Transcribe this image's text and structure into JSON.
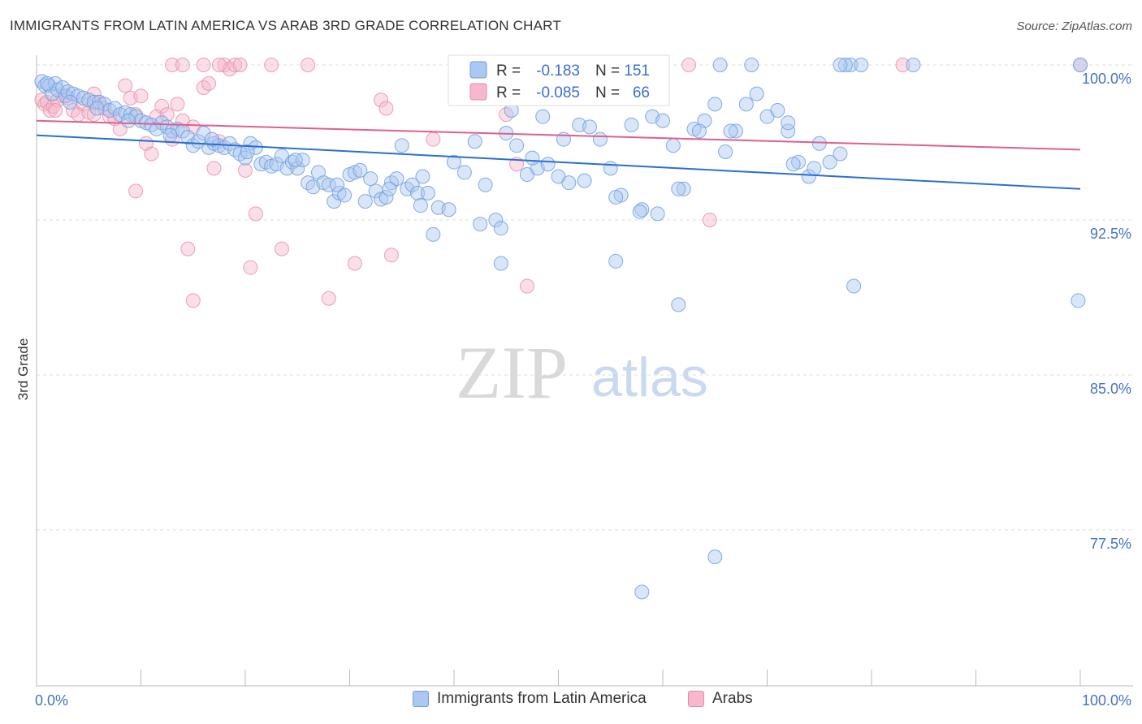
{
  "header": {
    "title": "IMMIGRANTS FROM LATIN AMERICA VS ARAB 3RD GRADE CORRELATION CHART",
    "source": "Source: ZipAtlas.com"
  },
  "watermark": {
    "zip": "ZIP",
    "atlas": "atlas"
  },
  "colors": {
    "blue_fill": "#aac8f0",
    "blue_stroke": "#6f9de0",
    "blue_line": "#2a6fd1",
    "pink_fill": "#f5b8cc",
    "pink_stroke": "#e98aa8",
    "pink_line": "#e05f8c",
    "tick_text": "#4472c4",
    "grid": "#dddddd"
  },
  "legend": {
    "r_label": "R =",
    "n_label": "N =",
    "entries": [
      {
        "r": "-0.183",
        "n": "151"
      },
      {
        "r": "-0.085",
        "n": "66"
      }
    ]
  },
  "chart_data": {
    "type": "scatter",
    "title": "IMMIGRANTS FROM LATIN AMERICA VS ARAB 3RD GRADE CORRELATION CHART",
    "xlabel": "",
    "ylabel": "3rd Grade",
    "xlim": [
      0,
      100
    ],
    "ylim": [
      71.5,
      100.8
    ],
    "x_tick_labels": [
      "0.0%",
      "100.0%"
    ],
    "y_ticks": [
      77.5,
      85.0,
      92.5,
      100.0
    ],
    "y_tick_labels": [
      "77.5%",
      "85.0%",
      "92.5%",
      "100.0%"
    ],
    "grid": true,
    "legend_position": "top-center",
    "series": [
      {
        "name": "Immigrants from Latin America",
        "color": "blue",
        "trend": {
          "x": [
            0,
            100
          ],
          "y": [
            96.6,
            94.0
          ]
        },
        "points": [
          [
            0.5,
            99.2
          ],
          [
            0.8,
            99.0
          ],
          [
            1.2,
            99.0
          ],
          [
            1.5,
            98.6
          ],
          [
            1.8,
            99.1
          ],
          [
            2.0,
            98.8
          ],
          [
            2.5,
            98.9
          ],
          [
            2.8,
            98.5
          ],
          [
            3.0,
            98.7
          ],
          [
            3.5,
            98.6
          ],
          [
            4.0,
            98.5
          ],
          [
            4.5,
            98.4
          ],
          [
            5.0,
            98.3
          ],
          [
            5.5,
            98.2
          ],
          [
            6.0,
            98.2
          ],
          [
            6.5,
            98.1
          ],
          [
            7.0,
            97.8
          ],
          [
            7.5,
            97.9
          ],
          [
            8.0,
            97.6
          ],
          [
            8.5,
            97.7
          ],
          [
            9.0,
            97.6
          ],
          [
            9.5,
            97.5
          ],
          [
            10.0,
            97.3
          ],
          [
            10.5,
            97.2
          ],
          [
            11.0,
            97.1
          ],
          [
            11.5,
            96.9
          ],
          [
            12.0,
            97.2
          ],
          [
            12.5,
            97.0
          ],
          [
            13.0,
            96.8
          ],
          [
            13.5,
            96.9
          ],
          [
            14.0,
            96.8
          ],
          [
            14.5,
            96.5
          ],
          [
            15.0,
            96.1
          ],
          [
            15.5,
            96.3
          ],
          [
            16.0,
            96.7
          ],
          [
            16.5,
            96.0
          ],
          [
            17.0,
            96.2
          ],
          [
            17.5,
            96.1
          ],
          [
            18.0,
            96.0
          ],
          [
            18.5,
            96.2
          ],
          [
            19.0,
            95.9
          ],
          [
            19.5,
            95.7
          ],
          [
            20.0,
            95.5
          ],
          [
            20.5,
            96.2
          ],
          [
            21.0,
            96.0
          ],
          [
            21.5,
            95.2
          ],
          [
            22.0,
            95.3
          ],
          [
            22.5,
            95.1
          ],
          [
            23.0,
            95.2
          ],
          [
            23.5,
            95.6
          ],
          [
            24.0,
            95.0
          ],
          [
            24.5,
            95.3
          ],
          [
            25.0,
            95.0
          ],
          [
            25.5,
            95.4
          ],
          [
            26.0,
            94.3
          ],
          [
            26.5,
            94.1
          ],
          [
            27.0,
            94.8
          ],
          [
            27.5,
            94.3
          ],
          [
            28.0,
            94.2
          ],
          [
            28.5,
            93.4
          ],
          [
            29.0,
            93.8
          ],
          [
            29.5,
            93.7
          ],
          [
            30.0,
            94.7
          ],
          [
            30.5,
            94.8
          ],
          [
            31.0,
            94.9
          ],
          [
            31.5,
            93.4
          ],
          [
            32.0,
            94.5
          ],
          [
            32.5,
            93.9
          ],
          [
            33.0,
            93.5
          ],
          [
            33.5,
            93.6
          ],
          [
            34.0,
            94.3
          ],
          [
            34.5,
            94.5
          ],
          [
            35.0,
            96.1
          ],
          [
            35.5,
            94.0
          ],
          [
            36.0,
            94.2
          ],
          [
            36.5,
            93.8
          ],
          [
            37.0,
            94.6
          ],
          [
            37.5,
            93.8
          ],
          [
            38.0,
            91.8
          ],
          [
            38.5,
            93.1
          ],
          [
            40.0,
            95.3
          ],
          [
            41.0,
            94.8
          ],
          [
            42.0,
            96.3
          ],
          [
            43.0,
            94.2
          ],
          [
            44.0,
            92.5
          ],
          [
            45.0,
            96.7
          ],
          [
            46.0,
            96.1
          ],
          [
            47.0,
            94.7
          ],
          [
            48.0,
            95.0
          ],
          [
            49.0,
            95.2
          ],
          [
            50.0,
            94.6
          ],
          [
            51.0,
            94.3
          ],
          [
            52.0,
            97.1
          ],
          [
            53.0,
            97.0
          ],
          [
            54.0,
            96.4
          ],
          [
            55.0,
            95.0
          ],
          [
            56.0,
            93.7
          ],
          [
            57.0,
            97.1
          ],
          [
            58.0,
            93.0
          ],
          [
            59.0,
            97.5
          ],
          [
            60.0,
            97.3
          ],
          [
            61.0,
            96.1
          ],
          [
            62.0,
            94.0
          ],
          [
            63.0,
            96.9
          ],
          [
            64.0,
            97.3
          ],
          [
            65.0,
            98.1
          ],
          [
            66.0,
            95.8
          ],
          [
            67.0,
            96.8
          ],
          [
            68.0,
            98.1
          ],
          [
            69.0,
            98.6
          ],
          [
            70.0,
            97.5
          ],
          [
            71.0,
            97.8
          ],
          [
            72.0,
            96.8
          ],
          [
            73.0,
            95.3
          ],
          [
            74.0,
            94.6
          ],
          [
            75.0,
            96.2
          ],
          [
            76.0,
            95.3
          ],
          [
            77.0,
            95.7
          ],
          [
            78.0,
            100.0
          ],
          [
            79.0,
            100.0
          ],
          [
            1.0,
            99.1
          ],
          [
            3.2,
            98.2
          ],
          [
            5.8,
            97.9
          ],
          [
            8.8,
            97.3
          ],
          [
            12.8,
            96.6
          ],
          [
            16.8,
            96.4
          ],
          [
            20.2,
            95.8
          ],
          [
            24.8,
            95.4
          ],
          [
            28.8,
            94.2
          ],
          [
            33.8,
            94.0
          ],
          [
            36.8,
            93.2
          ],
          [
            39.5,
            93.0
          ],
          [
            42.5,
            92.3
          ],
          [
            44.5,
            92.1
          ],
          [
            45.5,
            97.8
          ],
          [
            47.5,
            95.5
          ],
          [
            48.5,
            97.5
          ],
          [
            50.5,
            96.4
          ],
          [
            52.5,
            94.4
          ],
          [
            55.5,
            93.6
          ],
          [
            57.8,
            92.9
          ],
          [
            59.5,
            92.8
          ],
          [
            61.5,
            94.0
          ],
          [
            63.5,
            96.8
          ],
          [
            65.5,
            100.0
          ],
          [
            66.5,
            96.8
          ],
          [
            68.5,
            100.0
          ],
          [
            72.5,
            95.2
          ],
          [
            77.5,
            100.0
          ],
          [
            84.0,
            100.0
          ],
          [
            99.8,
            88.6
          ],
          [
            78.3,
            89.3
          ],
          [
            61.5,
            88.4
          ],
          [
            55.5,
            90.5
          ],
          [
            44.5,
            90.4
          ],
          [
            65.0,
            76.2
          ],
          [
            58.0,
            74.5
          ],
          [
            100.0,
            100.0
          ],
          [
            77.0,
            100.0
          ],
          [
            74.5,
            95.0
          ],
          [
            72.0,
            97.2
          ]
        ]
      },
      {
        "name": "Arabs",
        "color": "pink",
        "trend": {
          "x": [
            0,
            100
          ],
          "y": [
            97.3,
            95.9
          ]
        },
        "points": [
          [
            0.5,
            98.3
          ],
          [
            0.8,
            98.1
          ],
          [
            1.0,
            98.2
          ],
          [
            1.3,
            97.8
          ],
          [
            1.6,
            98.0
          ],
          [
            2.0,
            98.3
          ],
          [
            2.5,
            98.5
          ],
          [
            3.0,
            98.4
          ],
          [
            3.5,
            97.8
          ],
          [
            4.0,
            97.6
          ],
          [
            4.5,
            98.1
          ],
          [
            5.0,
            97.7
          ],
          [
            5.5,
            97.6
          ],
          [
            6.0,
            98.2
          ],
          [
            6.5,
            97.9
          ],
          [
            7.0,
            97.5
          ],
          [
            7.5,
            97.4
          ],
          [
            8.0,
            96.9
          ],
          [
            8.5,
            99.0
          ],
          [
            9.0,
            98.4
          ],
          [
            9.5,
            97.6
          ],
          [
            10.0,
            98.5
          ],
          [
            10.5,
            96.2
          ],
          [
            11.0,
            95.7
          ],
          [
            11.5,
            97.5
          ],
          [
            12.0,
            98.0
          ],
          [
            12.5,
            97.6
          ],
          [
            13.0,
            96.4
          ],
          [
            13.5,
            98.1
          ],
          [
            14.0,
            97.3
          ],
          [
            15.0,
            97.0
          ],
          [
            16.0,
            98.9
          ],
          [
            16.5,
            99.1
          ],
          [
            17.0,
            95.0
          ],
          [
            17.5,
            96.3
          ],
          [
            18.0,
            100.0
          ],
          [
            18.5,
            99.8
          ],
          [
            19.0,
            100.0
          ],
          [
            20.0,
            94.9
          ],
          [
            21.0,
            92.8
          ],
          [
            13.0,
            100.0
          ],
          [
            14.0,
            100.0
          ],
          [
            16.0,
            100.0
          ],
          [
            17.5,
            100.0
          ],
          [
            19.5,
            100.0
          ],
          [
            22.5,
            100.0
          ],
          [
            26.0,
            100.0
          ],
          [
            33.0,
            98.3
          ],
          [
            33.5,
            97.9
          ],
          [
            38.0,
            96.4
          ],
          [
            45.0,
            97.6
          ],
          [
            47.5,
            100.0
          ],
          [
            48.5,
            100.0
          ],
          [
            55.0,
            100.0
          ],
          [
            62.5,
            100.0
          ],
          [
            83.0,
            100.0
          ],
          [
            100.0,
            100.0
          ],
          [
            46.0,
            95.2
          ],
          [
            64.5,
            92.5
          ],
          [
            9.5,
            93.9
          ],
          [
            14.5,
            91.1
          ],
          [
            20.5,
            90.2
          ],
          [
            23.5,
            91.1
          ],
          [
            30.5,
            90.4
          ],
          [
            34.0,
            90.8
          ],
          [
            47.0,
            89.3
          ],
          [
            15.0,
            88.6
          ],
          [
            28.0,
            88.7
          ],
          [
            5.5,
            98.6
          ],
          [
            1.8,
            97.8
          ]
        ]
      }
    ]
  },
  "bottom_legend": [
    {
      "label": "Immigrants from Latin America",
      "color": "blue"
    },
    {
      "label": "Arabs",
      "color": "pink"
    }
  ]
}
